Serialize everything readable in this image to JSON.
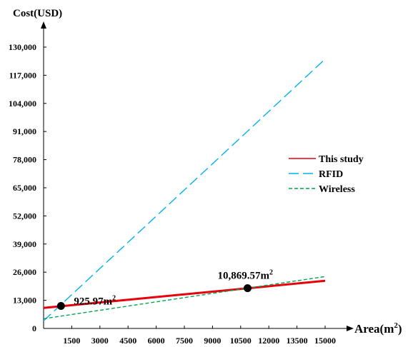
{
  "chart_data": {
    "type": "line",
    "ylabel": "Cost(USD)",
    "xlabel_base": "Area(m",
    "xlabel_sup": "2",
    "xlabel_close": ")",
    "xlim": [
      0,
      15000
    ],
    "ylim": [
      0,
      130000
    ],
    "x_ticks": [
      1500,
      3000,
      4500,
      6000,
      7500,
      9000,
      10500,
      12000,
      13500,
      15000
    ],
    "x_tick_labels": [
      "1500",
      "3000",
      "4500",
      "6000",
      "7500",
      "9000",
      "10500",
      "12000",
      "13500",
      "15000"
    ],
    "y_ticks": [
      0,
      13000,
      26000,
      39000,
      52000,
      65000,
      78000,
      91000,
      104000,
      117000,
      130000
    ],
    "y_tick_labels": [
      "0",
      "13,000",
      "26,000",
      "39,000",
      "52,000",
      "65,000",
      "78,000",
      "91,000",
      "104,000",
      "117,000",
      "130,000"
    ],
    "series": [
      {
        "name": "This study",
        "color": "#e8000b",
        "dash": "solid",
        "points": [
          [
            0,
            9500
          ],
          [
            15000,
            22000
          ]
        ]
      },
      {
        "name": "RFID",
        "color": "#00b0f0",
        "dash": "long-dash",
        "points": [
          [
            0,
            3500
          ],
          [
            15000,
            124500
          ]
        ]
      },
      {
        "name": "Wireless",
        "color": "#00a651",
        "dash": "short-dash",
        "points": [
          [
            0,
            4500
          ],
          [
            15000,
            24000
          ]
        ]
      }
    ],
    "annotations": [
      {
        "x": 925.97,
        "y": 10400,
        "label_base": "925.97m",
        "label_sup": "2"
      },
      {
        "x": 10869.57,
        "y": 18600,
        "label_base": "10,869.57m",
        "label_sup": "2"
      }
    ],
    "legend_position": "right-middle",
    "grid": false
  }
}
